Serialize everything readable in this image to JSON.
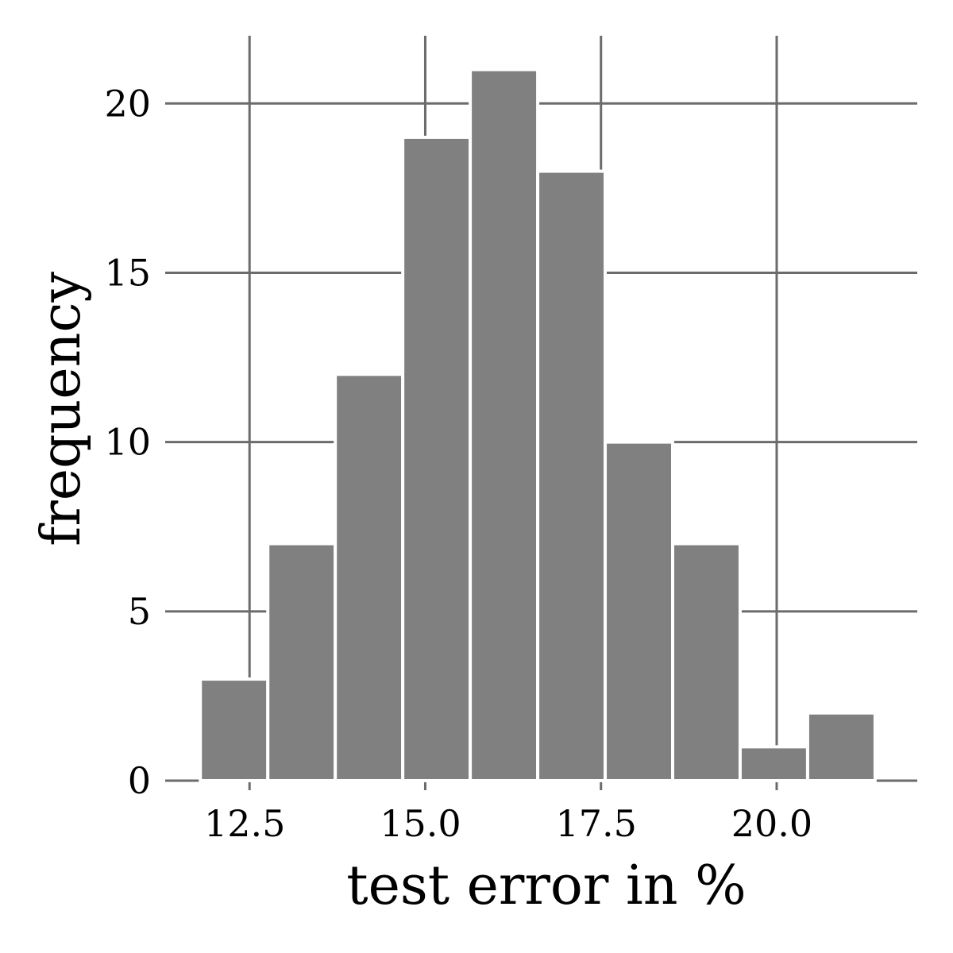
{
  "chart_data": {
    "type": "bar",
    "title": "",
    "xlabel": "test error in %",
    "ylabel": "frequency",
    "bins": [
      {
        "start": 11.8,
        "end": 12.76,
        "count": 3
      },
      {
        "start": 12.76,
        "end": 13.72,
        "count": 7
      },
      {
        "start": 13.72,
        "end": 14.68,
        "count": 12
      },
      {
        "start": 14.68,
        "end": 15.64,
        "count": 19
      },
      {
        "start": 15.64,
        "end": 16.6,
        "count": 21
      },
      {
        "start": 16.6,
        "end": 17.56,
        "count": 18
      },
      {
        "start": 17.56,
        "end": 18.52,
        "count": 10
      },
      {
        "start": 18.52,
        "end": 19.48,
        "count": 7
      },
      {
        "start": 19.48,
        "end": 20.44,
        "count": 1
      },
      {
        "start": 20.44,
        "end": 21.4,
        "count": 2
      }
    ],
    "xlim": [
      11.3,
      22.0
    ],
    "ylim": [
      0,
      22
    ],
    "xticks": [
      12.5,
      15.0,
      17.5,
      20.0
    ],
    "xtick_labels": [
      "12.5",
      "15.0",
      "17.5",
      "20.0"
    ],
    "yticks": [
      0,
      5,
      10,
      15,
      20
    ],
    "ytick_labels": [
      "0",
      "5",
      "10",
      "15",
      "20"
    ],
    "grid": true,
    "bar_color": "#808080",
    "grid_color": "#6b6b6b"
  }
}
